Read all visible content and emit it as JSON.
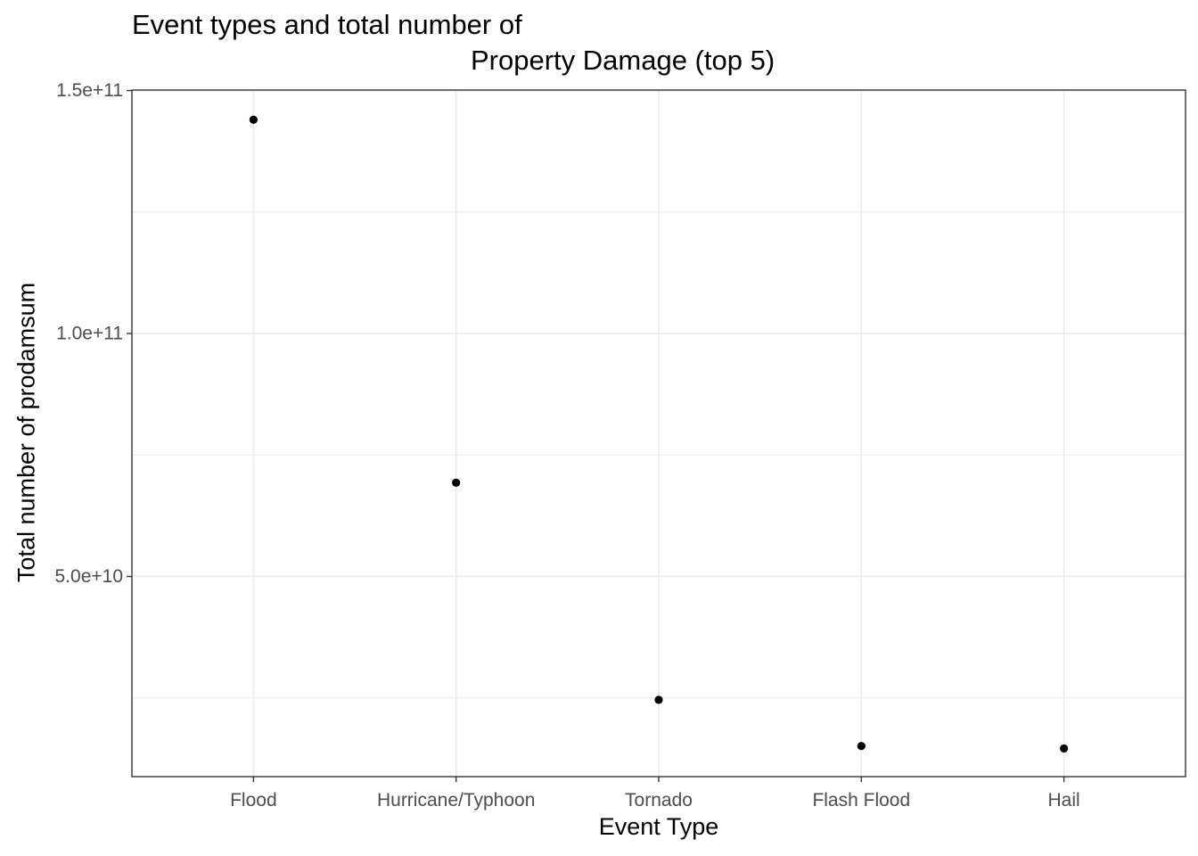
{
  "chart_data": {
    "type": "scatter",
    "title": "Event types and total number of\nProperty Damage (top 5)",
    "title_lines": [
      "Event types and total number of",
      "Property Damage (top 5)"
    ],
    "xlabel": "Event Type",
    "ylabel": "Total number of prodamsum",
    "categories": [
      "Flood",
      "Hurricane/Typhoon",
      "Tornado",
      "Flash Flood",
      "Hail"
    ],
    "values": [
      144000000000,
      69300000000,
      24600000000,
      15100000000,
      14600000000
    ],
    "ylim": [
      8800000000,
      150100000000
    ],
    "yticks": [
      50000000000,
      100000000000,
      150000000000
    ],
    "ytick_labels": [
      "5.0e+10",
      "1.0e+11",
      "1.5e+11"
    ],
    "grid": true,
    "legend": "none",
    "colors": {
      "point": "#000000",
      "grid": "#ebebeb",
      "panel_border": "#333333",
      "tick_label": "#4d4d4d"
    }
  }
}
